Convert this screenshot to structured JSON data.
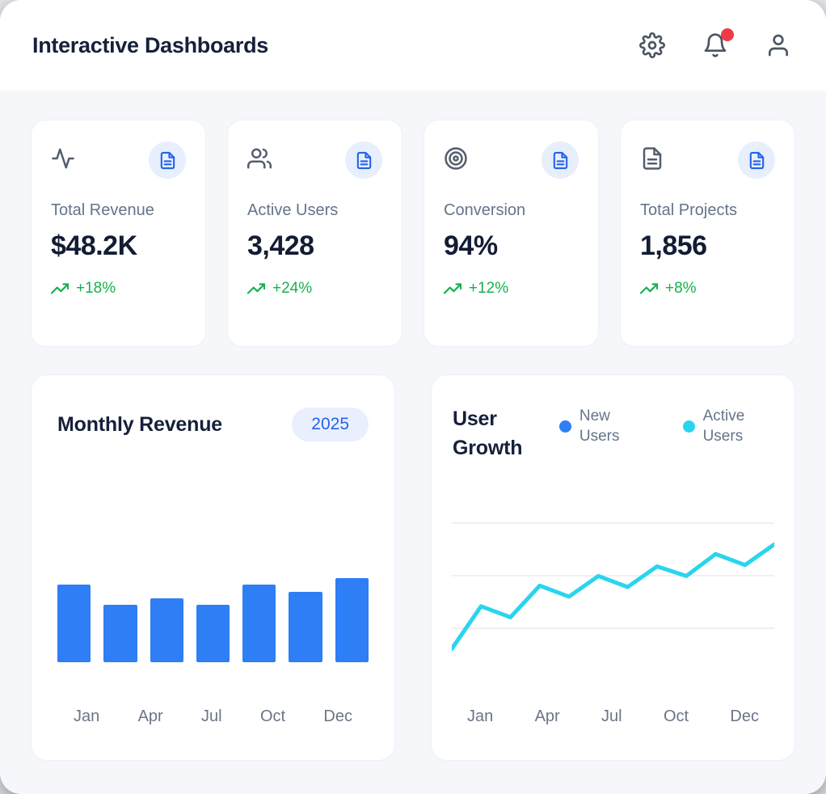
{
  "header": {
    "title": "Interactive Dashboards",
    "icons": [
      "settings",
      "notifications",
      "profile"
    ],
    "notification_dot": true
  },
  "stats": [
    {
      "icon": "activity-icon",
      "badge_icon": "document-icon",
      "label": "Total Revenue",
      "value": "$48.2K",
      "change": "+18%"
    },
    {
      "icon": "users-icon",
      "badge_icon": "document-icon",
      "label": "Active Users",
      "value": "3,428",
      "change": "+24%"
    },
    {
      "icon": "target-icon",
      "badge_icon": "document-icon",
      "label": "Conversion",
      "value": "94%",
      "change": "+12%"
    },
    {
      "icon": "file-text-icon",
      "badge_icon": "document-icon",
      "label": "Total Projects",
      "value": "1,856",
      "change": "+8%"
    }
  ],
  "chart_data": [
    {
      "type": "bar",
      "title": "Monthly Revenue",
      "badge": "2025",
      "x_tick_labels": [
        "Jan",
        "Apr",
        "Jul",
        "Oct",
        "Dec"
      ],
      "bars_pct_of_max": [
        92,
        68,
        76,
        68,
        92,
        84,
        100
      ],
      "bar_color": "#2e7ef6",
      "grid": false,
      "y_axis_labels": "none shown",
      "legend_position": "none"
    },
    {
      "type": "line",
      "title": "User Growth",
      "x_tick_labels": [
        "Jan",
        "Apr",
        "Jul",
        "Oct",
        "Dec"
      ],
      "series": [
        {
          "name": "New Users",
          "color": "#2d7ef7",
          "values_pct": []
        },
        {
          "name": "Active Users",
          "color": "#2bd4ee",
          "values_pct": [
            5,
            36,
            28,
            51,
            43,
            58,
            50,
            65,
            58,
            74,
            66,
            81
          ]
        }
      ],
      "grid": true,
      "gridline_count": 3,
      "y_axis_labels": "none shown",
      "legend_position": "top-right"
    }
  ],
  "colors": {
    "accent_blue": "#2e7ef6",
    "cyan": "#2bd4ee",
    "green": "#16b14e",
    "notification_red": "#ef3b46",
    "badge_text_blue": "#2563eb",
    "badge_bg": "#e9effc",
    "ink": "#16203a",
    "muted": "#64748b",
    "card_bg": "#ffffff",
    "content_bg": "#f6f7fa"
  }
}
